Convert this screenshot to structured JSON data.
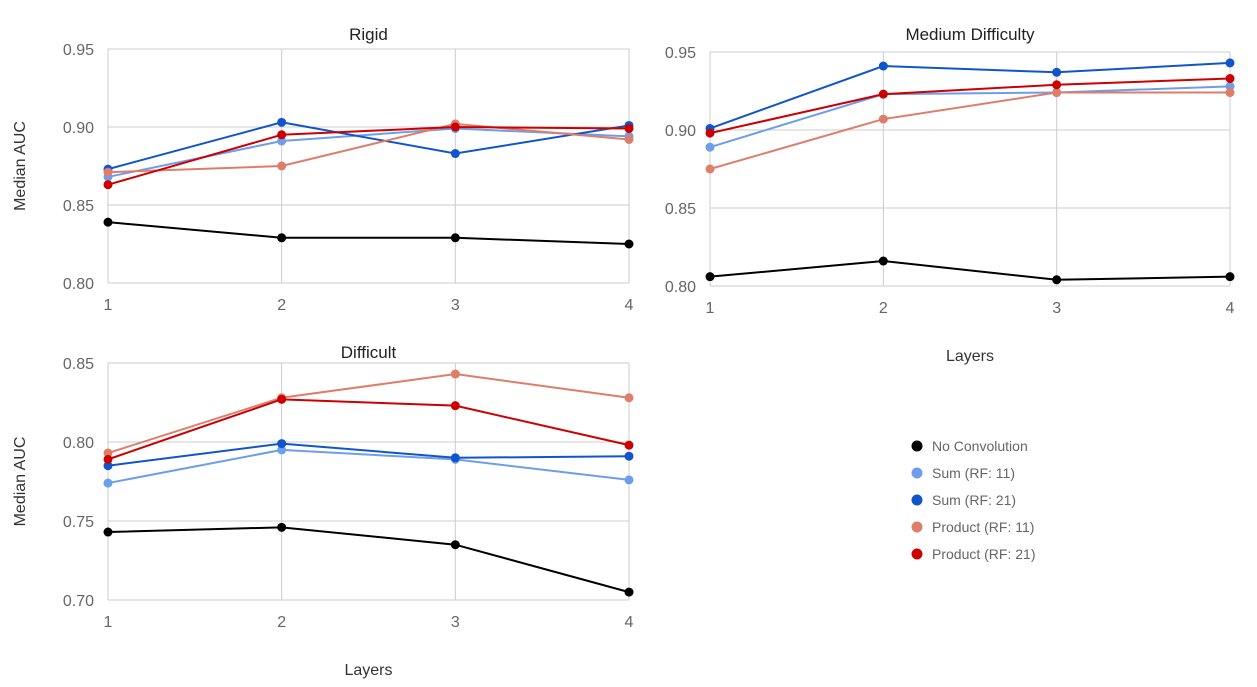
{
  "chart_data": [
    {
      "type": "line",
      "title": "Rigid",
      "xlabel": "",
      "ylabel": "Median AUC",
      "x": [
        1,
        2,
        3,
        4
      ],
      "ylim": [
        0.8,
        0.95
      ],
      "yticks": [
        "0.80",
        "0.85",
        "0.90",
        "0.95"
      ],
      "xticks": [
        "1",
        "2",
        "3",
        "4"
      ],
      "grid": true,
      "series": [
        {
          "name": "No Convolution",
          "color": "#000000",
          "values": [
            0.839,
            0.829,
            0.829,
            0.825
          ]
        },
        {
          "name": "Sum (RF: 11)",
          "color": "#6d9eeb",
          "values": [
            0.868,
            0.891,
            0.899,
            0.894
          ]
        },
        {
          "name": "Sum (RF: 21)",
          "color": "#1155cc",
          "values": [
            0.873,
            0.903,
            0.883,
            0.901
          ]
        },
        {
          "name": "Product (RF: 11)",
          "color": "#dd7e6b",
          "values": [
            0.871,
            0.875,
            0.902,
            0.892
          ]
        },
        {
          "name": "Product (RF: 21)",
          "color": "#cc0000",
          "values": [
            0.863,
            0.895,
            0.9,
            0.899
          ]
        }
      ]
    },
    {
      "type": "line",
      "title": "Medium Difficulty",
      "xlabel": "Layers",
      "ylabel": "",
      "x": [
        1,
        2,
        3,
        4
      ],
      "ylim": [
        0.8,
        0.95
      ],
      "yticks": [
        "0.80",
        "0.85",
        "0.90",
        "0.95"
      ],
      "xticks": [
        "1",
        "2",
        "3",
        "4"
      ],
      "grid": true,
      "series": [
        {
          "name": "No Convolution",
          "color": "#000000",
          "values": [
            0.806,
            0.816,
            0.804,
            0.806
          ]
        },
        {
          "name": "Sum (RF: 11)",
          "color": "#6d9eeb",
          "values": [
            0.889,
            0.923,
            0.924,
            0.928
          ]
        },
        {
          "name": "Sum (RF: 21)",
          "color": "#1155cc",
          "values": [
            0.901,
            0.941,
            0.937,
            0.943
          ]
        },
        {
          "name": "Product (RF: 11)",
          "color": "#dd7e6b",
          "values": [
            0.875,
            0.907,
            0.924,
            0.924
          ]
        },
        {
          "name": "Product (RF: 21)",
          "color": "#cc0000",
          "values": [
            0.898,
            0.923,
            0.929,
            0.933
          ]
        }
      ]
    },
    {
      "type": "line",
      "title": "Difficult",
      "xlabel": "Layers",
      "ylabel": "Median AUC",
      "x": [
        1,
        2,
        3,
        4
      ],
      "ylim": [
        0.7,
        0.85
      ],
      "yticks": [
        "0.70",
        "0.75",
        "0.80",
        "0.85"
      ],
      "xticks": [
        "1",
        "2",
        "3",
        "4"
      ],
      "grid": true,
      "series": [
        {
          "name": "No Convolution",
          "color": "#000000",
          "values": [
            0.743,
            0.746,
            0.735,
            0.705
          ]
        },
        {
          "name": "Sum (RF: 11)",
          "color": "#6d9eeb",
          "values": [
            0.774,
            0.795,
            0.789,
            0.776
          ]
        },
        {
          "name": "Sum (RF: 21)",
          "color": "#1155cc",
          "values": [
            0.785,
            0.799,
            0.79,
            0.791
          ]
        },
        {
          "name": "Product (RF: 11)",
          "color": "#dd7e6b",
          "values": [
            0.793,
            0.828,
            0.843,
            0.828
          ]
        },
        {
          "name": "Product (RF: 21)",
          "color": "#cc0000",
          "values": [
            0.789,
            0.827,
            0.823,
            0.798
          ]
        }
      ]
    }
  ],
  "legend": {
    "placement": "bottom-right",
    "items": [
      {
        "label": "No Convolution",
        "color": "#000000"
      },
      {
        "label": "Sum (RF: 11)",
        "color": "#6d9eeb"
      },
      {
        "label": "Sum (RF: 21)",
        "color": "#1155cc"
      },
      {
        "label": "Product (RF: 11)",
        "color": "#dd7e6b"
      },
      {
        "label": "Product (RF: 21)",
        "color": "#cc0000"
      }
    ]
  }
}
